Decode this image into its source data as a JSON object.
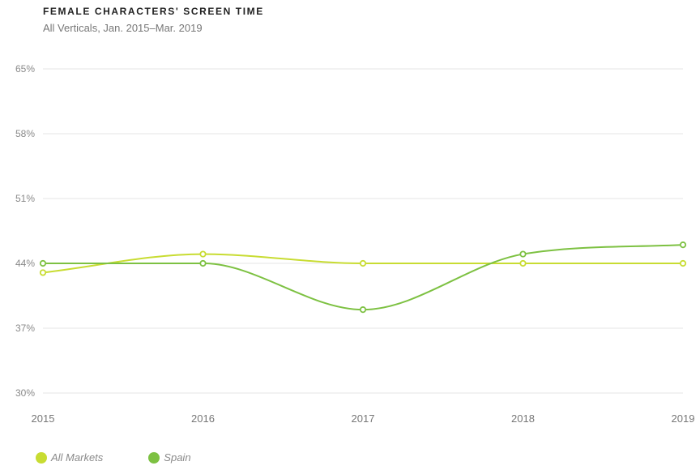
{
  "chart_data": {
    "type": "line",
    "title": "FEMALE CHARACTERS' SCREEN TIME",
    "subtitle": "All Verticals, Jan. 2015–Mar. 2019",
    "xlabel": "",
    "ylabel": "",
    "x": [
      "2015",
      "2016",
      "2017",
      "2018",
      "2019"
    ],
    "ylim": [
      30,
      65
    ],
    "yticks": [
      "65%",
      "58%",
      "51%",
      "44%",
      "37%",
      "30%"
    ],
    "ytick_values": [
      65,
      58,
      51,
      44,
      37,
      30
    ],
    "grid": true,
    "legend_position": "bottom-left",
    "series": [
      {
        "name": "All Markets",
        "color": "#c8dc32",
        "values": [
          43,
          45,
          44,
          44,
          44
        ]
      },
      {
        "name": "Spain",
        "color": "#7dc142",
        "values": [
          44,
          44,
          39,
          45,
          46
        ]
      }
    ]
  }
}
